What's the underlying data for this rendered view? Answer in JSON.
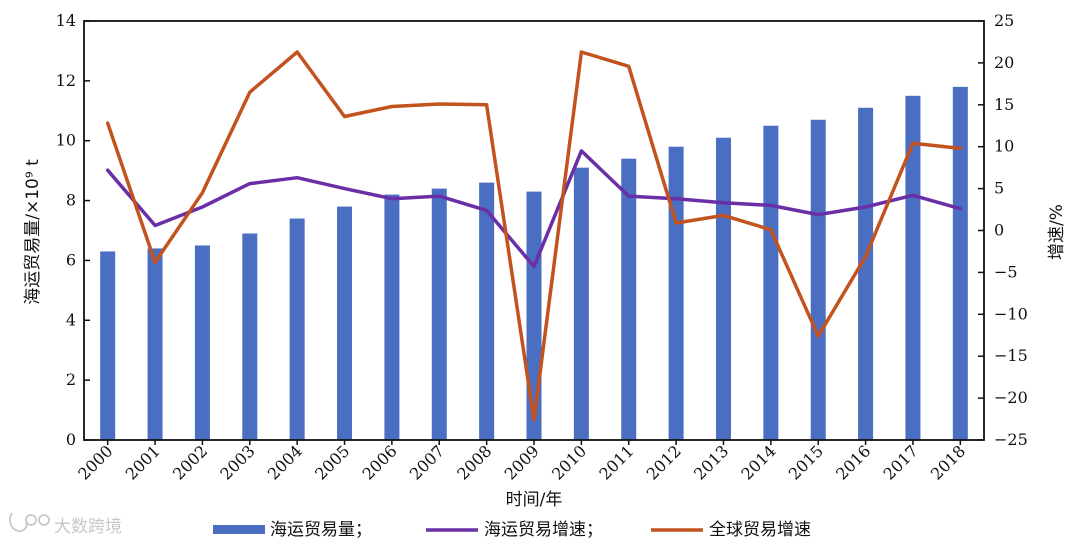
{
  "chart_data": {
    "type": "bar+line",
    "categories": [
      "2000",
      "2001",
      "2002",
      "2003",
      "2004",
      "2005",
      "2006",
      "2007",
      "2008",
      "2009",
      "2010",
      "2011",
      "2012",
      "2013",
      "2014",
      "2015",
      "2016",
      "2017",
      "2018"
    ],
    "series": [
      {
        "name": "海运贸易量；",
        "type": "bar",
        "axis": "left",
        "color": "#4a6ec2",
        "values": [
          6.3,
          6.4,
          6.5,
          6.9,
          7.4,
          7.8,
          8.2,
          8.4,
          8.6,
          8.3,
          9.1,
          9.4,
          9.8,
          10.1,
          10.5,
          10.7,
          11.1,
          11.5,
          11.8
        ]
      },
      {
        "name": "海运贸易增速；",
        "type": "line",
        "axis": "right",
        "color": "#6a2fa6",
        "values": [
          7.2,
          0.6,
          2.8,
          5.6,
          6.3,
          5.0,
          3.8,
          4.1,
          2.4,
          -4.3,
          9.5,
          4.1,
          3.8,
          3.3,
          3.0,
          1.9,
          2.8,
          4.2,
          2.6
        ]
      },
      {
        "name": "全球贸易增速",
        "type": "line",
        "axis": "right",
        "color": "#c2531e",
        "values": [
          12.8,
          -3.8,
          4.5,
          16.5,
          21.3,
          13.6,
          14.8,
          15.1,
          15.0,
          -22.6,
          21.3,
          19.6,
          0.9,
          1.8,
          0.1,
          -12.6,
          -3.1,
          10.4,
          9.8
        ]
      }
    ],
    "xlabel": "时间/年",
    "ylabel_left": "海运贸易量/×10⁹ t",
    "ylabel_right": "增速/%",
    "ylim_left": [
      0,
      14
    ],
    "yticks_left": [
      "0",
      "2",
      "4",
      "6",
      "8",
      "10",
      "12",
      "14"
    ],
    "ylim_right": [
      -25,
      25
    ],
    "yticks_right": [
      "−25",
      "−20",
      "−15",
      "−10",
      "−5",
      "0",
      "5",
      "10",
      "15",
      "20",
      "25"
    ],
    "grid": false,
    "legend_placement": "bottom"
  },
  "watermark": {
    "text": "大数跨境",
    "icon": "brand-logo-icon"
  }
}
